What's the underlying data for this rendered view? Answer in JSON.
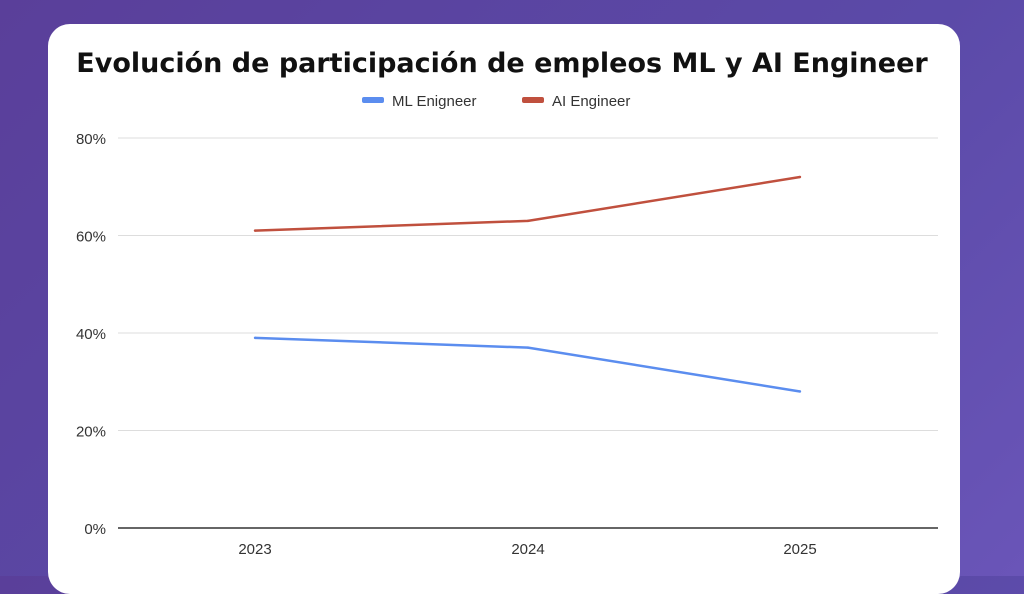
{
  "chart_data": {
    "type": "line",
    "title": "Evolución de participación de empleos ML y AI Engineer",
    "categories": [
      "2023",
      "2024",
      "2025"
    ],
    "series": [
      {
        "name": "ML Enigneer",
        "color": "#5b8def",
        "values": [
          39,
          37,
          28
        ]
      },
      {
        "name": "AI Engineer",
        "color": "#c0503e",
        "values": [
          61,
          63,
          72
        ]
      }
    ],
    "yticks": [
      "0%",
      "20%",
      "40%",
      "60%",
      "80%"
    ],
    "ylim": [
      0,
      80
    ],
    "grid": true,
    "legend": "top"
  }
}
